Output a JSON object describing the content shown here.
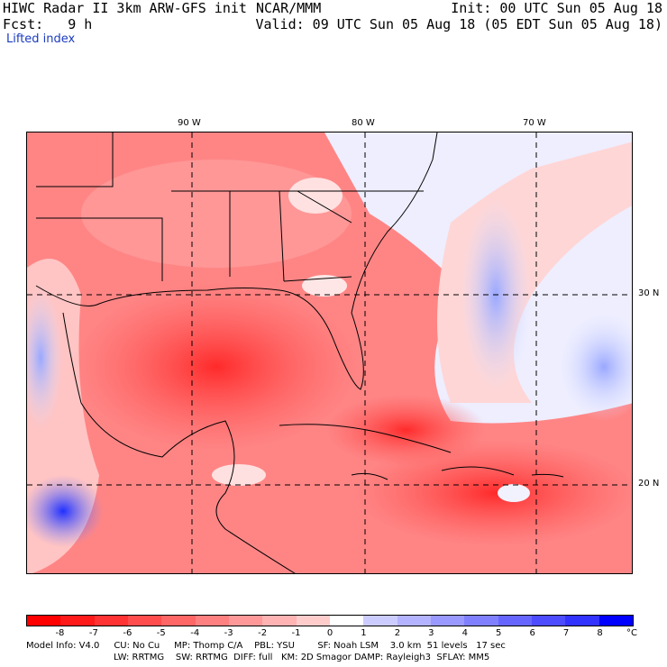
{
  "header": {
    "title": "HIWC Radar II 3km ARW-GFS init",
    "org": "NCAR/MMM",
    "init": "Init: 00 UTC Sun 05 Aug 18",
    "fcst": "Fcst:   9 h",
    "valid": "Valid: 09 UTC Sun 05 Aug 18 (05 EDT Sun 05 Aug 18)",
    "field": "Lifted index"
  },
  "axes": {
    "lon_labels": [
      "90 W",
      "80 W",
      "70 W"
    ],
    "lat_labels": [
      "30 N",
      "20 N"
    ]
  },
  "colorbar": {
    "unit": "°C",
    "labels": [
      "-8",
      "-7",
      "-6",
      "-5",
      "-4",
      "-3",
      "-2",
      "-1",
      "0",
      "1",
      "2",
      "3",
      "4",
      "5",
      "6",
      "7",
      "8"
    ],
    "colors": [
      "#ff0000",
      "#ff1a1a",
      "#ff3333",
      "#ff4d4d",
      "#ff6666",
      "#ff8080",
      "#ff9999",
      "#ffb3b3",
      "#ffcccc",
      "#ffffff",
      "#ccccff",
      "#b3b3ff",
      "#9999ff",
      "#8080ff",
      "#6666ff",
      "#4d4dff",
      "#3333ff",
      "#0000ff"
    ]
  },
  "footer": {
    "line1": "Model Info: V4.0     CU: No Cu     MP: Thomp C/A    PBL: YSU        SF: Noah LSM    3.0 km  51 levels   17 sec",
    "line2": "LW: RRTMG    SW: RRTMG  DIFF: full   KM: 2D Smagor DAMP: Rayleigh3  SFLAY: MM5"
  }
}
